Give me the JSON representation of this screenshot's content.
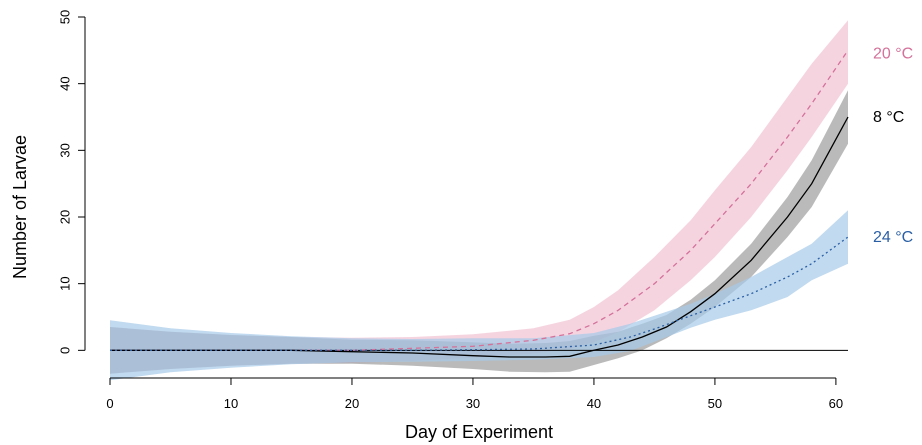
{
  "chart_data": {
    "type": "line",
    "title": "",
    "xlabel": "Day of Experiment",
    "ylabel": "Number of Larvae",
    "xlim": [
      0,
      61
    ],
    "ylim": [
      -7,
      50
    ],
    "xticks": [
      0,
      10,
      20,
      30,
      40,
      50,
      60
    ],
    "yticks": [
      0,
      10,
      20,
      30,
      40,
      50
    ],
    "grid": false,
    "zero_line": 0,
    "legend": "direct labels at right end of lines",
    "series": [
      {
        "name": "20 °C",
        "color": "#d4729a",
        "band_color": "#f2c6d6",
        "line_style": "dashed",
        "x": [
          0,
          5,
          10,
          15,
          20,
          25,
          30,
          35,
          38,
          40,
          42,
          45,
          48,
          50,
          53,
          56,
          58,
          61
        ],
        "y": [
          0,
          0,
          0,
          0,
          0,
          0.3,
          0.6,
          1.5,
          2.5,
          4,
          6,
          10,
          15,
          19,
          25,
          32,
          37,
          45
        ],
        "lower": [
          -3.5,
          -2.8,
          -2.3,
          -2,
          -1.9,
          -1.6,
          -1.1,
          -0.5,
          0.2,
          1.2,
          2.7,
          6,
          10.5,
          14,
          20,
          27,
          32,
          40
        ],
        "upper": [
          3.5,
          2.8,
          2.3,
          2,
          1.9,
          2,
          2.4,
          3.3,
          4.6,
          6.5,
          9,
          14,
          19.5,
          24,
          30.5,
          38,
          43,
          49.5
        ]
      },
      {
        "name": "8 °C",
        "color": "#000000",
        "band_color": "#8c8c8c",
        "line_style": "solid",
        "x": [
          0,
          5,
          10,
          15,
          20,
          25,
          30,
          33,
          36,
          38,
          40,
          42,
          44,
          46,
          48,
          50,
          53,
          56,
          58,
          61
        ],
        "y": [
          0,
          0,
          0,
          0,
          -0.2,
          -0.4,
          -0.8,
          -1,
          -1,
          -0.9,
          0,
          0.8,
          2,
          3.5,
          5.8,
          8.5,
          13.5,
          20,
          25,
          35
        ],
        "lower": [
          -3.5,
          -2.8,
          -2.3,
          -2,
          -2,
          -2.3,
          -2.8,
          -3.2,
          -3.3,
          -3.2,
          -2.2,
          -1.2,
          0,
          1.8,
          4,
          6.5,
          11,
          17,
          21.5,
          31
        ],
        "upper": [
          3.5,
          2.8,
          2.3,
          2,
          1.6,
          1.5,
          1.2,
          1,
          1.1,
          1.4,
          2.2,
          2.8,
          4,
          5.3,
          7.6,
          10.5,
          16,
          23,
          28.5,
          39
        ]
      },
      {
        "name": "24 °C",
        "color": "#2a5fa5",
        "band_color": "#a6cbe8",
        "line_style": "dotted",
        "x": [
          0,
          5,
          10,
          15,
          20,
          25,
          30,
          35,
          40,
          43,
          45,
          48,
          50,
          53,
          56,
          58,
          61
        ],
        "y": [
          0,
          0,
          0,
          0,
          0,
          0,
          0.1,
          0.2,
          0.8,
          2,
          3.2,
          5.2,
          6.5,
          8.5,
          11,
          13,
          17
        ],
        "lower": [
          -4.5,
          -3.3,
          -2.6,
          -2.1,
          -1.8,
          -1.7,
          -1.6,
          -1.4,
          -1,
          -0.1,
          1.3,
          3.4,
          4.6,
          6,
          8,
          10.5,
          13
        ],
        "upper": [
          4.5,
          3.3,
          2.6,
          2.1,
          1.8,
          1.7,
          1.8,
          1.8,
          2.6,
          4,
          5.2,
          7,
          8.5,
          11,
          14,
          16,
          21
        ]
      }
    ]
  }
}
